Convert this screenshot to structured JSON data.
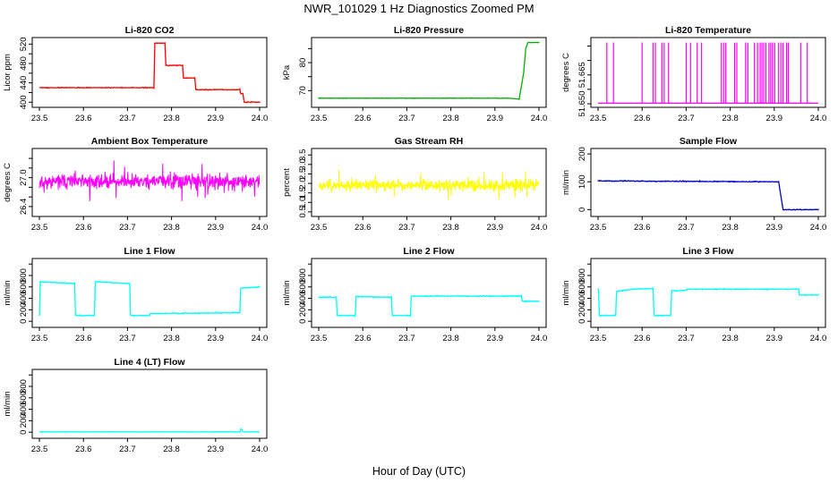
{
  "figure": {
    "title": "NWR_101029  1 Hz Diagnostics Zoomed PM",
    "xlabel": "Hour of Day (UTC)"
  },
  "chart_data": [
    {
      "type": "line",
      "title": "Li-820 CO2",
      "ylabel": "Licor ppm",
      "xlim": [
        23.5,
        24.0
      ],
      "ylim": [
        395,
        528
      ],
      "xticks": [
        "23.5",
        "23.6",
        "23.7",
        "23.8",
        "23.9",
        "24.0"
      ],
      "yticks": [
        400,
        420,
        440,
        460,
        480,
        500,
        520
      ],
      "ytick_labels": [
        "400",
        "",
        "440",
        "",
        "480",
        "",
        "520"
      ],
      "color": "#ff0000",
      "noise": 0.8,
      "series": [
        {
          "x": [
            23.5,
            23.76,
            23.762,
            23.785,
            23.787,
            23.825,
            23.827,
            23.853,
            23.855,
            23.955,
            23.957,
            23.962,
            23.965,
            24.0
          ],
          "y": [
            430,
            430,
            522,
            522,
            476,
            476,
            450,
            450,
            426,
            426,
            418,
            418,
            400,
            400
          ]
        }
      ]
    },
    {
      "type": "line",
      "title": "Li-820 Pressure",
      "ylabel": "kPa",
      "xlim": [
        23.5,
        24.0
      ],
      "ylim": [
        65,
        88
      ],
      "xticks": [
        "23.5",
        "23.6",
        "23.7",
        "23.8",
        "23.9",
        "24.0"
      ],
      "yticks": [
        70,
        75,
        80,
        85
      ],
      "ytick_labels": [
        "70",
        "",
        "80",
        ""
      ],
      "color": "#00b000",
      "noise": 0.08,
      "series": [
        {
          "x": [
            23.5,
            23.93,
            23.955,
            23.965,
            23.97,
            23.975,
            24.0
          ],
          "y": [
            67.3,
            67.3,
            67.0,
            76.0,
            85.0,
            87.2,
            87.2
          ]
        }
      ]
    },
    {
      "type": "spikes",
      "title": "Li-820 Temperature",
      "ylabel": "degrees C",
      "xlim": [
        23.5,
        24.0
      ],
      "ylim": [
        51.6497,
        51.672
      ],
      "xticks": [
        "23.5",
        "23.6",
        "23.7",
        "23.8",
        "23.9",
        "24.0"
      ],
      "yticks": [
        51.65,
        51.655,
        51.66,
        51.665,
        51.67
      ],
      "ytick_labels": [
        "51.650",
        "",
        "51.665",
        "",
        ""
      ],
      "color": "#ff00ff",
      "base": 51.6502,
      "top": 51.6712,
      "spike_x": [
        23.52,
        23.535,
        23.6,
        23.625,
        23.63,
        23.645,
        23.65,
        23.66,
        23.7,
        23.71,
        23.725,
        23.735,
        23.78,
        23.785,
        23.79,
        23.81,
        23.815,
        23.835,
        23.84,
        23.855,
        23.862,
        23.868,
        23.872,
        23.876,
        23.881,
        23.888,
        23.892,
        23.896,
        23.901,
        23.91,
        23.915,
        23.92,
        23.928,
        23.932,
        23.96,
        23.975
      ]
    },
    {
      "type": "noise",
      "title": "Ambient Box Temperature",
      "ylabel": "degrees C",
      "xlim": [
        23.5,
        24.0
      ],
      "ylim": [
        26.25,
        27.55
      ],
      "xticks": [
        "23.5",
        "23.6",
        "23.7",
        "23.8",
        "23.9",
        "24.0"
      ],
      "yticks": [
        26.4,
        26.6,
        26.8,
        27.0,
        27.2,
        27.4
      ],
      "ytick_labels": [
        "26.4",
        "",
        "",
        "27.0",
        "",
        ""
      ],
      "color": "#ff00ff",
      "center": 26.92,
      "spread": 0.15,
      "seed": 11
    },
    {
      "type": "noise",
      "title": "Gas Stream RH",
      "ylabel": "percent",
      "xlim": [
        23.5,
        24.0
      ],
      "ylim": [
        0.4,
        3.7
      ],
      "xticks": [
        "23.5",
        "23.6",
        "23.7",
        "23.8",
        "23.9",
        "24.0"
      ],
      "yticks": [
        0.5,
        1.0,
        1.5,
        2.0,
        2.5,
        3.0,
        3.5
      ],
      "ytick_labels": [
        "0.5",
        "1.0",
        "1.5",
        "2.0",
        "2.5",
        "3.0",
        "3.5"
      ],
      "color": "#ffff00",
      "center": 1.9,
      "spread": 0.28,
      "seed": 23
    },
    {
      "type": "line",
      "title": "Sample Flow",
      "ylabel": "ml/min",
      "xlim": [
        23.5,
        24.0
      ],
      "ylim": [
        -15,
        210
      ],
      "xticks": [
        "23.5",
        "23.6",
        "23.7",
        "23.8",
        "23.9",
        "24.0"
      ],
      "yticks": [
        0,
        100,
        200
      ],
      "ytick_labels": [
        "0",
        "100",
        "200"
      ],
      "color": "#0000cc",
      "noise": 1.5,
      "series": [
        {
          "x": [
            23.5,
            23.91,
            23.92,
            24.0
          ],
          "y": [
            103,
            100,
            0,
            0
          ]
        }
      ]
    },
    {
      "type": "line",
      "title": "Line 1 Flow",
      "ylabel": "ml/min",
      "xlim": [
        23.5,
        24.0
      ],
      "ylim": [
        -60,
        1050
      ],
      "xticks": [
        "23.5",
        "23.6",
        "23.7",
        "23.8",
        "23.9",
        "24.0"
      ],
      "yticks": [
        0,
        200,
        400,
        600,
        800,
        1000
      ],
      "ytick_labels": [
        "0",
        "200",
        "400",
        "600",
        "800",
        ""
      ],
      "color": "#00ffff",
      "noise": 8,
      "series": [
        {
          "x": [
            23.5,
            23.502,
            23.58,
            23.582,
            23.625,
            23.627,
            23.705,
            23.707,
            23.75,
            23.752,
            23.955,
            23.957,
            24.0
          ],
          "y": [
            100,
            690,
            660,
            100,
            100,
            690,
            660,
            100,
            100,
            135,
            150,
            580,
            600
          ]
        }
      ]
    },
    {
      "type": "line",
      "title": "Line 2 Flow",
      "ylabel": "ml/min",
      "xlim": [
        23.5,
        24.0
      ],
      "ylim": [
        -60,
        1050
      ],
      "xticks": [
        "23.5",
        "23.6",
        "23.7",
        "23.8",
        "23.9",
        "24.0"
      ],
      "yticks": [
        0,
        200,
        400,
        600,
        800,
        1000
      ],
      "ytick_labels": [
        "0",
        "200",
        "400",
        "600",
        "800",
        ""
      ],
      "color": "#00ffff",
      "noise": 8,
      "series": [
        {
          "x": [
            23.5,
            23.54,
            23.542,
            23.583,
            23.585,
            23.665,
            23.667,
            23.708,
            23.71,
            23.96,
            23.962,
            24.0
          ],
          "y": [
            420,
            420,
            100,
            100,
            430,
            420,
            100,
            100,
            440,
            440,
            350,
            350
          ]
        }
      ]
    },
    {
      "type": "line",
      "title": "Line 3 Flow",
      "ylabel": "ml/min",
      "xlim": [
        23.5,
        24.0
      ],
      "ylim": [
        -60,
        1050
      ],
      "xticks": [
        "23.5",
        "23.6",
        "23.7",
        "23.8",
        "23.9",
        "24.0"
      ],
      "yticks": [
        0,
        200,
        400,
        600,
        800,
        1000
      ],
      "ytick_labels": [
        "0",
        "200",
        "400",
        "600",
        "800",
        ""
      ],
      "color": "#00ffff",
      "noise": 8,
      "series": [
        {
          "x": [
            23.5,
            23.501,
            23.503,
            23.54,
            23.542,
            23.58,
            23.582,
            23.625,
            23.627,
            23.665,
            23.667,
            23.7,
            23.702,
            23.955,
            23.957,
            24.0
          ],
          "y": [
            560,
            560,
            100,
            100,
            520,
            560,
            560,
            570,
            100,
            100,
            530,
            540,
            560,
            560,
            460,
            460
          ]
        }
      ]
    },
    {
      "type": "line",
      "title": "Line 4 (LT) Flow",
      "ylabel": "ml/min",
      "xlim": [
        23.5,
        24.0
      ],
      "ylim": [
        -60,
        1050
      ],
      "xticks": [
        "23.5",
        "23.6",
        "23.7",
        "23.8",
        "23.9",
        "24.0"
      ],
      "yticks": [
        0,
        200,
        400,
        600,
        800,
        1000
      ],
      "ytick_labels": [
        "0",
        "200",
        "400",
        "600",
        "800",
        ""
      ],
      "color": "#00ffff",
      "noise": 2,
      "series": [
        {
          "x": [
            23.5,
            23.955,
            23.958,
            23.962,
            24.0
          ],
          "y": [
            5,
            5,
            60,
            5,
            5
          ]
        }
      ]
    }
  ]
}
